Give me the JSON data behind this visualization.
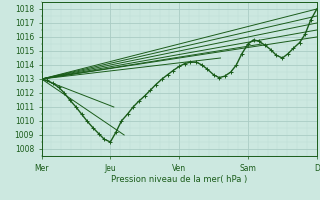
{
  "background_color": "#cce8e0",
  "grid_major_color": "#aaccC4",
  "grid_minor_color": "#bbddd5",
  "line_color": "#1a5c1a",
  "xlabel": "Pression niveau de la mer( hPa )",
  "x_ticks": [
    0,
    1,
    2,
    3,
    4
  ],
  "x_tick_labels": [
    "Mer",
    "Jeu",
    "Ven",
    "Sam",
    "D"
  ],
  "ylim": [
    1007.5,
    1018.5
  ],
  "yticks": [
    1008,
    1009,
    1010,
    1011,
    1012,
    1013,
    1014,
    1015,
    1016,
    1017,
    1018
  ],
  "x_total": 4,
  "straight_lines": [
    {
      "x0": 0.0,
      "y0": 1013.0,
      "x1": 4.0,
      "y1": 1018.0
    },
    {
      "x0": 0.0,
      "y0": 1013.0,
      "x1": 4.0,
      "y1": 1017.5
    },
    {
      "x0": 0.0,
      "y0": 1013.0,
      "x1": 4.0,
      "y1": 1017.0
    },
    {
      "x0": 0.0,
      "y0": 1013.0,
      "x1": 4.0,
      "y1": 1016.5
    },
    {
      "x0": 0.0,
      "y0": 1013.0,
      "x1": 4.0,
      "y1": 1016.0
    },
    {
      "x0": 0.0,
      "y0": 1013.0,
      "x1": 3.2,
      "y1": 1015.5
    },
    {
      "x0": 0.0,
      "y0": 1013.0,
      "x1": 2.6,
      "y1": 1014.5
    },
    {
      "x0": 0.0,
      "y0": 1013.0,
      "x1": 1.05,
      "y1": 1011.0
    },
    {
      "x0": 0.0,
      "y0": 1013.0,
      "x1": 1.2,
      "y1": 1009.0
    }
  ],
  "main_curve_x": [
    0.0,
    0.08,
    0.16,
    0.25,
    0.33,
    0.41,
    0.5,
    0.58,
    0.66,
    0.75,
    0.83,
    0.91,
    1.0,
    1.08,
    1.16,
    1.25,
    1.33,
    1.41,
    1.5,
    1.58,
    1.66,
    1.75,
    1.83,
    1.91,
    2.0,
    2.08,
    2.16,
    2.25,
    2.33,
    2.41,
    2.5,
    2.58,
    2.66,
    2.75,
    2.83,
    2.91,
    3.0,
    3.08,
    3.16,
    3.25,
    3.33,
    3.41,
    3.5,
    3.58,
    3.66,
    3.75,
    3.83,
    3.91,
    4.0
  ],
  "main_curve_y": [
    1013.0,
    1012.9,
    1012.7,
    1012.4,
    1012.0,
    1011.5,
    1011.0,
    1010.5,
    1010.0,
    1009.5,
    1009.1,
    1008.7,
    1008.5,
    1009.2,
    1010.0,
    1010.5,
    1011.0,
    1011.4,
    1011.8,
    1012.2,
    1012.6,
    1013.0,
    1013.3,
    1013.6,
    1013.9,
    1014.1,
    1014.2,
    1014.2,
    1014.0,
    1013.7,
    1013.3,
    1013.1,
    1013.2,
    1013.5,
    1014.0,
    1014.8,
    1015.5,
    1015.8,
    1015.7,
    1015.4,
    1015.1,
    1014.7,
    1014.5,
    1014.8,
    1015.2,
    1015.6,
    1016.2,
    1017.2,
    1018.0
  ]
}
